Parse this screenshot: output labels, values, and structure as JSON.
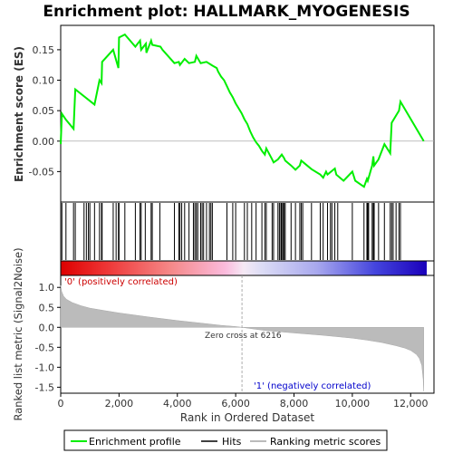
{
  "chart_data": {
    "type": "line",
    "title": "Enrichment plot: HALLMARK_MYOGENESIS",
    "top_panel": {
      "ylabel": "Enrichment score (ES)",
      "ylim": [
        -0.1,
        0.19
      ],
      "yticks": [
        0.15,
        0.1,
        0.05,
        0.0,
        -0.05
      ],
      "ytick_labels": [
        "0.15",
        "0.10",
        "0.05",
        "0.00",
        "-0.05"
      ],
      "series_name": "Enrichment profile",
      "color": "#00ee00",
      "x": [
        0,
        40,
        180,
        440,
        500,
        1160,
        1330,
        1400,
        1420,
        1800,
        1980,
        2000,
        2200,
        2560,
        2720,
        2760,
        2920,
        2940,
        3100,
        3140,
        3420,
        3490,
        3900,
        4050,
        4090,
        4250,
        4400,
        4600,
        4650,
        4800,
        5000,
        5200,
        5350,
        5400,
        5500,
        5600,
        5700,
        5800,
        5900,
        6000,
        6100,
        6200,
        6300,
        6400,
        6500,
        6600,
        6700,
        6800,
        6900,
        7000,
        7050,
        7250,
        7300,
        7450,
        7580,
        7660,
        7700,
        7900,
        8050,
        8200,
        8250,
        8600,
        8900,
        9000,
        9100,
        9150,
        9400,
        9450,
        9700,
        10000,
        10100,
        10400,
        10500,
        10530,
        10680,
        10720,
        10750,
        10900,
        11100,
        11300,
        11350,
        11600,
        11650,
        12450
      ],
      "y": [
        -0.005,
        0.045,
        0.035,
        0.02,
        0.085,
        0.06,
        0.1,
        0.095,
        0.13,
        0.15,
        0.12,
        0.17,
        0.175,
        0.155,
        0.165,
        0.15,
        0.16,
        0.145,
        0.165,
        0.158,
        0.155,
        0.15,
        0.128,
        0.13,
        0.125,
        0.135,
        0.128,
        0.13,
        0.14,
        0.128,
        0.13,
        0.124,
        0.12,
        0.114,
        0.106,
        0.1,
        0.09,
        0.08,
        0.072,
        0.062,
        0.054,
        0.046,
        0.036,
        0.028,
        0.016,
        0.006,
        -0.002,
        -0.008,
        -0.016,
        -0.022,
        -0.012,
        -0.03,
        -0.035,
        -0.03,
        -0.022,
        -0.028,
        -0.032,
        -0.04,
        -0.047,
        -0.04,
        -0.032,
        -0.046,
        -0.055,
        -0.06,
        -0.05,
        -0.055,
        -0.045,
        -0.055,
        -0.065,
        -0.05,
        -0.065,
        -0.075,
        -0.062,
        -0.065,
        -0.04,
        -0.025,
        -0.04,
        -0.03,
        -0.005,
        -0.02,
        0.03,
        0.05,
        0.065,
        0.0
      ]
    },
    "hits": {
      "label": "Hits",
      "positions": [
        40,
        180,
        440,
        500,
        800,
        880,
        950,
        1000,
        1160,
        1330,
        1400,
        1420,
        1800,
        1900,
        1980,
        2000,
        2200,
        2560,
        2720,
        2760,
        2900,
        3100,
        3140,
        3400,
        3900,
        4050,
        4090,
        4150,
        4250,
        4400,
        4550,
        4600,
        4650,
        4700,
        4800,
        4850,
        4900,
        5000,
        5100,
        5150,
        5200,
        5700,
        5900,
        6000,
        6300,
        6400,
        6550,
        6700,
        6900,
        7000,
        7050,
        7250,
        7300,
        7450,
        7500,
        7550,
        7580,
        7620,
        7660,
        7700,
        7900,
        8050,
        8200,
        8250,
        8300,
        8600,
        8900,
        9000,
        9150,
        9250,
        9300,
        9400,
        9500,
        10000,
        10400,
        10500,
        10530,
        10560,
        10680,
        10720,
        10750,
        10900,
        11100,
        11300,
        11350,
        11400,
        11500,
        11600,
        11650
      ]
    },
    "ranked_panel": {
      "ylabel": "Ranked list metric (Signal2Noise)",
      "ylim": [
        -1.65,
        1.3
      ],
      "yticks": [
        1.0,
        0.5,
        0.0,
        -0.5,
        -1.0,
        -1.5
      ],
      "ytick_labels": [
        "1.0",
        "0.5",
        "0.0",
        "-0.5",
        "-1.0",
        "-1.5"
      ],
      "series_name": "Ranking metric scores",
      "x": [
        0,
        30,
        100,
        200,
        400,
        700,
        1000,
        1500,
        2000,
        3000,
        4000,
        5000,
        5500,
        6000,
        6216,
        6500,
        7000,
        8000,
        9000,
        10000,
        10500,
        11000,
        11500,
        11800,
        12000,
        12200,
        12300,
        12380,
        12430,
        12450
      ],
      "y": [
        1.05,
        0.9,
        0.78,
        0.7,
        0.62,
        0.54,
        0.48,
        0.42,
        0.36,
        0.26,
        0.17,
        0.09,
        0.05,
        0.02,
        0.0,
        -0.03,
        -0.08,
        -0.14,
        -0.2,
        -0.27,
        -0.32,
        -0.38,
        -0.46,
        -0.52,
        -0.58,
        -0.68,
        -0.78,
        -0.95,
        -1.3,
        -1.6
      ],
      "pos_label": "'0' (positively correlated)",
      "neg_label": "'1' (negatively correlated)",
      "zero_cross_label": "Zero cross at 6216",
      "zero_cross": 6216
    },
    "xaxis": {
      "label": "Rank in Ordered Dataset",
      "xlim": [
        0,
        12800
      ],
      "ticks": [
        0,
        2000,
        4000,
        6000,
        8000,
        10000,
        12000
      ],
      "tick_labels": [
        "0",
        "2,000",
        "4,000",
        "6,000",
        "8,000",
        "10,000",
        "12,000"
      ]
    },
    "legend": {
      "placement": "bottom",
      "entries": [
        {
          "label": "Enrichment profile",
          "color": "#00ee00"
        },
        {
          "label": "Hits",
          "color": "#000000"
        },
        {
          "label": "Ranking metric scores",
          "color": "#bbbbbb"
        }
      ]
    }
  }
}
